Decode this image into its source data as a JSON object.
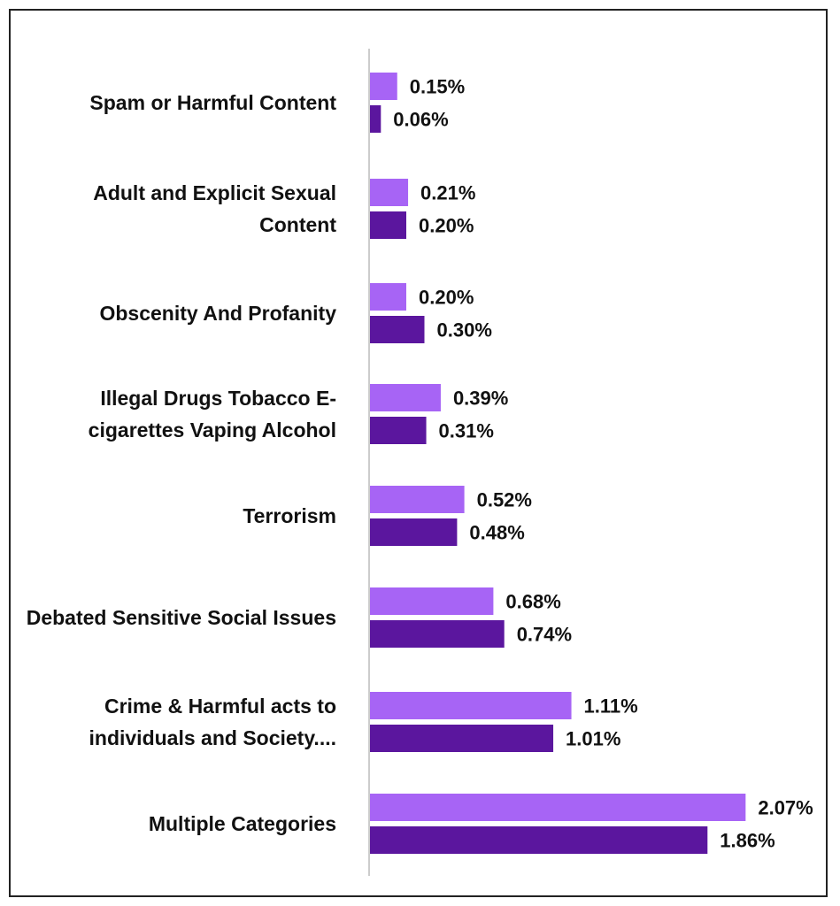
{
  "chart_data": {
    "type": "bar",
    "orientation": "horizontal",
    "categories": [
      [
        "Spam or Harmful Content"
      ],
      [
        "Adult and Explicit Sexual",
        "Content"
      ],
      [
        "Obscenity And Profanity"
      ],
      [
        "Illegal Drugs Tobacco E-",
        "cigarettes Vaping Alcohol"
      ],
      [
        "Terrorism"
      ],
      [
        "Debated Sensitive Social Issues"
      ],
      [
        "Crime & Harmful acts to",
        "individuals and Society...."
      ],
      [
        "Multiple Categories"
      ]
    ],
    "series": [
      {
        "color": "#A764F5",
        "values": [
          0.15,
          0.21,
          0.2,
          0.39,
          0.52,
          0.68,
          1.11,
          2.07
        ],
        "labels": [
          "0.15%",
          "0.21%",
          "0.20%",
          "0.39%",
          "0.52%",
          "0.68%",
          "1.11%",
          "2.07%"
        ]
      },
      {
        "color": "#5B169E",
        "values": [
          0.06,
          0.2,
          0.3,
          0.31,
          0.48,
          0.74,
          1.01,
          1.86
        ],
        "labels": [
          "0.06%",
          "0.20%",
          "0.30%",
          "0.31%",
          "0.48%",
          "0.74%",
          "1.01%",
          "1.86%"
        ]
      }
    ],
    "unit": "%",
    "axis_line_color": "#BBBBBB",
    "grid": false,
    "legend": "none"
  }
}
